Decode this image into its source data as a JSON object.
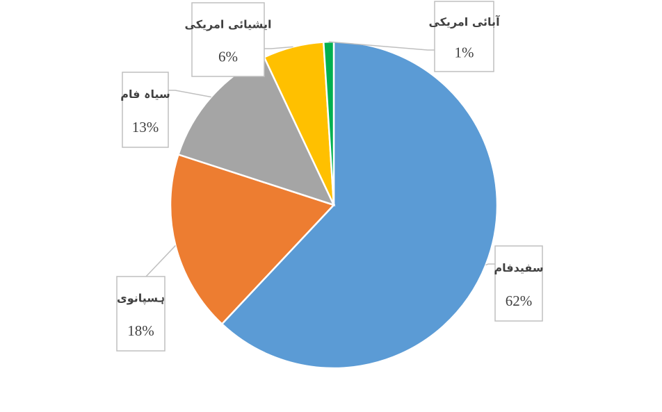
{
  "chart_data": {
    "type": "pie",
    "categories": [
      "سفیدفام",
      "ہسپانوی",
      "سیاہ فام",
      "ایشیائی امریکی",
      "آبائی امریکی"
    ],
    "values": [
      62,
      18,
      13,
      6,
      1
    ],
    "value_labels": [
      "62%",
      "18%",
      "13%",
      "6%",
      "1%"
    ],
    "colors": [
      "#5b9bd5",
      "#ed7d31",
      "#a5a5a5",
      "#ffc000",
      "#00b050"
    ]
  }
}
